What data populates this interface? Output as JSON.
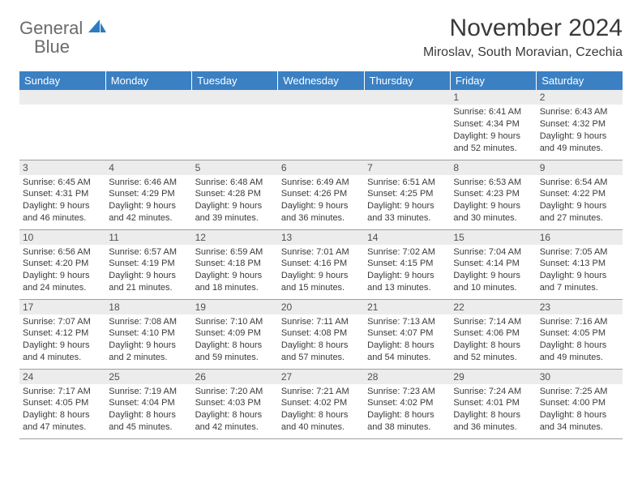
{
  "logo": {
    "word1": "General",
    "word2": "Blue"
  },
  "title": "November 2024",
  "location": "Miroslav, South Moravian, Czechia",
  "colors": {
    "header_bg": "#3a80c3",
    "header_fg": "#ffffff",
    "daynum_bg": "#ececec",
    "text": "#3a3a3a",
    "logo_gray": "#6b6b6b",
    "logo_blue": "#2f7bbf",
    "rule": "#9aa0a6"
  },
  "weekdays": [
    "Sunday",
    "Monday",
    "Tuesday",
    "Wednesday",
    "Thursday",
    "Friday",
    "Saturday"
  ],
  "layout": {
    "columns": 7,
    "rows": 5,
    "first_weekday_index": 5
  },
  "days": [
    {
      "n": "1",
      "sunrise": "Sunrise: 6:41 AM",
      "sunset": "Sunset: 4:34 PM",
      "day1": "Daylight: 9 hours",
      "day2": "and 52 minutes."
    },
    {
      "n": "2",
      "sunrise": "Sunrise: 6:43 AM",
      "sunset": "Sunset: 4:32 PM",
      "day1": "Daylight: 9 hours",
      "day2": "and 49 minutes."
    },
    {
      "n": "3",
      "sunrise": "Sunrise: 6:45 AM",
      "sunset": "Sunset: 4:31 PM",
      "day1": "Daylight: 9 hours",
      "day2": "and 46 minutes."
    },
    {
      "n": "4",
      "sunrise": "Sunrise: 6:46 AM",
      "sunset": "Sunset: 4:29 PM",
      "day1": "Daylight: 9 hours",
      "day2": "and 42 minutes."
    },
    {
      "n": "5",
      "sunrise": "Sunrise: 6:48 AM",
      "sunset": "Sunset: 4:28 PM",
      "day1": "Daylight: 9 hours",
      "day2": "and 39 minutes."
    },
    {
      "n": "6",
      "sunrise": "Sunrise: 6:49 AM",
      "sunset": "Sunset: 4:26 PM",
      "day1": "Daylight: 9 hours",
      "day2": "and 36 minutes."
    },
    {
      "n": "7",
      "sunrise": "Sunrise: 6:51 AM",
      "sunset": "Sunset: 4:25 PM",
      "day1": "Daylight: 9 hours",
      "day2": "and 33 minutes."
    },
    {
      "n": "8",
      "sunrise": "Sunrise: 6:53 AM",
      "sunset": "Sunset: 4:23 PM",
      "day1": "Daylight: 9 hours",
      "day2": "and 30 minutes."
    },
    {
      "n": "9",
      "sunrise": "Sunrise: 6:54 AM",
      "sunset": "Sunset: 4:22 PM",
      "day1": "Daylight: 9 hours",
      "day2": "and 27 minutes."
    },
    {
      "n": "10",
      "sunrise": "Sunrise: 6:56 AM",
      "sunset": "Sunset: 4:20 PM",
      "day1": "Daylight: 9 hours",
      "day2": "and 24 minutes."
    },
    {
      "n": "11",
      "sunrise": "Sunrise: 6:57 AM",
      "sunset": "Sunset: 4:19 PM",
      "day1": "Daylight: 9 hours",
      "day2": "and 21 minutes."
    },
    {
      "n": "12",
      "sunrise": "Sunrise: 6:59 AM",
      "sunset": "Sunset: 4:18 PM",
      "day1": "Daylight: 9 hours",
      "day2": "and 18 minutes."
    },
    {
      "n": "13",
      "sunrise": "Sunrise: 7:01 AM",
      "sunset": "Sunset: 4:16 PM",
      "day1": "Daylight: 9 hours",
      "day2": "and 15 minutes."
    },
    {
      "n": "14",
      "sunrise": "Sunrise: 7:02 AM",
      "sunset": "Sunset: 4:15 PM",
      "day1": "Daylight: 9 hours",
      "day2": "and 13 minutes."
    },
    {
      "n": "15",
      "sunrise": "Sunrise: 7:04 AM",
      "sunset": "Sunset: 4:14 PM",
      "day1": "Daylight: 9 hours",
      "day2": "and 10 minutes."
    },
    {
      "n": "16",
      "sunrise": "Sunrise: 7:05 AM",
      "sunset": "Sunset: 4:13 PM",
      "day1": "Daylight: 9 hours",
      "day2": "and 7 minutes."
    },
    {
      "n": "17",
      "sunrise": "Sunrise: 7:07 AM",
      "sunset": "Sunset: 4:12 PM",
      "day1": "Daylight: 9 hours",
      "day2": "and 4 minutes."
    },
    {
      "n": "18",
      "sunrise": "Sunrise: 7:08 AM",
      "sunset": "Sunset: 4:10 PM",
      "day1": "Daylight: 9 hours",
      "day2": "and 2 minutes."
    },
    {
      "n": "19",
      "sunrise": "Sunrise: 7:10 AM",
      "sunset": "Sunset: 4:09 PM",
      "day1": "Daylight: 8 hours",
      "day2": "and 59 minutes."
    },
    {
      "n": "20",
      "sunrise": "Sunrise: 7:11 AM",
      "sunset": "Sunset: 4:08 PM",
      "day1": "Daylight: 8 hours",
      "day2": "and 57 minutes."
    },
    {
      "n": "21",
      "sunrise": "Sunrise: 7:13 AM",
      "sunset": "Sunset: 4:07 PM",
      "day1": "Daylight: 8 hours",
      "day2": "and 54 minutes."
    },
    {
      "n": "22",
      "sunrise": "Sunrise: 7:14 AM",
      "sunset": "Sunset: 4:06 PM",
      "day1": "Daylight: 8 hours",
      "day2": "and 52 minutes."
    },
    {
      "n": "23",
      "sunrise": "Sunrise: 7:16 AM",
      "sunset": "Sunset: 4:05 PM",
      "day1": "Daylight: 8 hours",
      "day2": "and 49 minutes."
    },
    {
      "n": "24",
      "sunrise": "Sunrise: 7:17 AM",
      "sunset": "Sunset: 4:05 PM",
      "day1": "Daylight: 8 hours",
      "day2": "and 47 minutes."
    },
    {
      "n": "25",
      "sunrise": "Sunrise: 7:19 AM",
      "sunset": "Sunset: 4:04 PM",
      "day1": "Daylight: 8 hours",
      "day2": "and 45 minutes."
    },
    {
      "n": "26",
      "sunrise": "Sunrise: 7:20 AM",
      "sunset": "Sunset: 4:03 PM",
      "day1": "Daylight: 8 hours",
      "day2": "and 42 minutes."
    },
    {
      "n": "27",
      "sunrise": "Sunrise: 7:21 AM",
      "sunset": "Sunset: 4:02 PM",
      "day1": "Daylight: 8 hours",
      "day2": "and 40 minutes."
    },
    {
      "n": "28",
      "sunrise": "Sunrise: 7:23 AM",
      "sunset": "Sunset: 4:02 PM",
      "day1": "Daylight: 8 hours",
      "day2": "and 38 minutes."
    },
    {
      "n": "29",
      "sunrise": "Sunrise: 7:24 AM",
      "sunset": "Sunset: 4:01 PM",
      "day1": "Daylight: 8 hours",
      "day2": "and 36 minutes."
    },
    {
      "n": "30",
      "sunrise": "Sunrise: 7:25 AM",
      "sunset": "Sunset: 4:00 PM",
      "day1": "Daylight: 8 hours",
      "day2": "and 34 minutes."
    }
  ]
}
